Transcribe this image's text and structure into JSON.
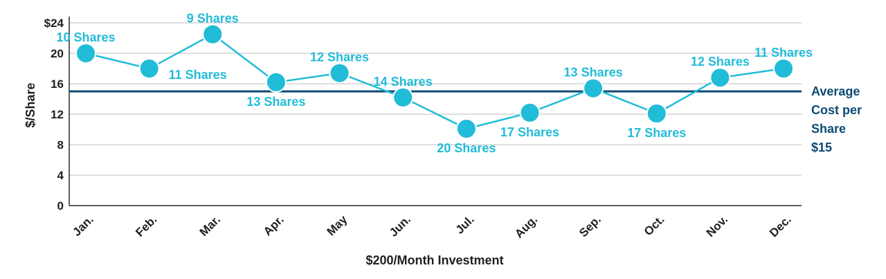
{
  "chart_data": {
    "type": "line",
    "xlabel": "$200/Month Investment",
    "ylabel": "$/Share",
    "ylim": [
      0,
      24
    ],
    "y_ticks": [
      {
        "value": 24,
        "label": "$24"
      },
      {
        "value": 20,
        "label": "20"
      },
      {
        "value": 16,
        "label": "16"
      },
      {
        "value": 12,
        "label": "12"
      },
      {
        "value": 8,
        "label": "8"
      },
      {
        "value": 4,
        "label": "4"
      },
      {
        "value": 0,
        "label": "0"
      }
    ],
    "grid": true,
    "categories": [
      "Jan.",
      "Feb.",
      "Mar.",
      "Apr.",
      "May",
      "Jun.",
      "Jul.",
      "Aug.",
      "Sep.",
      "Oct.",
      "Nov.",
      "Dec."
    ],
    "series": [
      {
        "values": [
          20,
          18,
          22.5,
          16.2,
          17.4,
          14.2,
          10.1,
          12.2,
          15.4,
          12.1,
          16.8,
          18
        ],
        "point_labels": [
          "10 Shares",
          "11 Shares",
          "9 Shares",
          "13 Shares",
          "12 Shares",
          "14 Shares",
          "20 Shares",
          "17 Shares",
          "13 Shares",
          "17 Shares",
          "12 Shares",
          "11 Shares"
        ],
        "label_positions": [
          "above",
          "below-right",
          "above",
          "below",
          "above",
          "above",
          "below",
          "below",
          "above",
          "below",
          "above",
          "above"
        ]
      }
    ],
    "reference_line": {
      "value": 15,
      "label_lines": [
        "Average",
        "Cost per",
        "Share",
        "$15"
      ]
    },
    "colors": {
      "series": "#20bcd8",
      "reference": "#0d4a73",
      "grid": "#bdbdbd",
      "axis": "#2a2a2a",
      "text": "#1f1f1f"
    }
  }
}
